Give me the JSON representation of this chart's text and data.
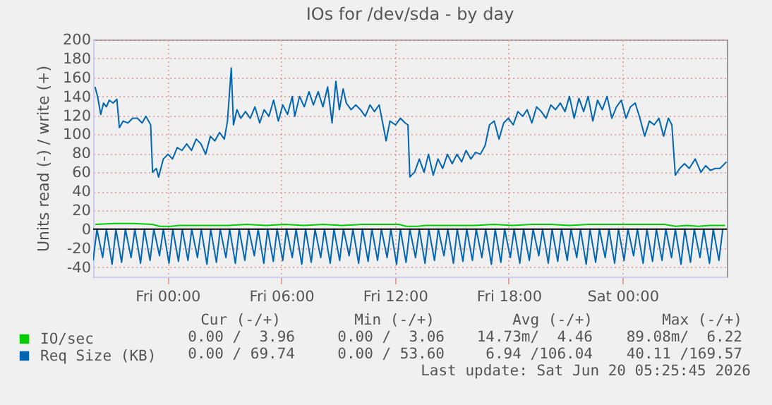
{
  "chart_data": {
    "type": "line",
    "title": "IOs for /dev/sda - by day",
    "ylabel": "Units read (-) / write (+)",
    "xlim": [
      "2026-06-18T20:05",
      "2026-06-20T05:30"
    ],
    "xticks": [
      {
        "value": "2026-06-19T00:00",
        "label": "Fri 00:00"
      },
      {
        "value": "2026-06-19T06:00",
        "label": "Fri 06:00"
      },
      {
        "value": "2026-06-19T12:00",
        "label": "Fri 12:00"
      },
      {
        "value": "2026-06-19T18:00",
        "label": "Fri 18:00"
      },
      {
        "value": "2026-06-20T00:00",
        "label": "Sat 00:00"
      }
    ],
    "ylim": [
      -50,
      200
    ],
    "yticks": [
      -40,
      -20,
      0,
      20,
      40,
      60,
      80,
      100,
      120,
      140,
      160,
      180,
      200
    ],
    "grid": true,
    "legend": "bottom left",
    "ref_lines": [
      {
        "axis": "y",
        "value": 0,
        "color": "#000000"
      }
    ],
    "annotations": [
      "Cur (-/+)",
      "Min (-/+)",
      "Avg (-/+)",
      "Max (-/+)",
      "0.00 /  3.96",
      "0.00 /  3.06",
      "14.73m/  4.46",
      "89.08m/  6.22",
      "0.00 / 69.74",
      "0.00 / 53.60",
      "6.94 /106.04",
      "40.11 /169.57",
      "Last update: Sat Jun 20 05:25:45 2026"
    ],
    "series": [
      {
        "name": "IO/sec",
        "color": "#00cc00",
        "x": [
          "2026-06-18T20:12",
          "2026-06-18T21:12",
          "2026-06-18T22:12",
          "2026-06-18T23:12",
          "2026-06-18T23:36",
          "2026-06-19T00:12",
          "2026-06-19T00:36",
          "2026-06-19T01:12",
          "2026-06-19T02:12",
          "2026-06-19T03:12",
          "2026-06-19T04:12",
          "2026-06-19T05:12",
          "2026-06-19T06:12",
          "2026-06-19T07:12",
          "2026-06-19T08:12",
          "2026-06-19T09:12",
          "2026-06-19T10:12",
          "2026-06-19T11:12",
          "2026-06-19T12:12",
          "2026-06-19T12:36",
          "2026-06-19T13:12",
          "2026-06-19T13:36",
          "2026-06-19T14:12",
          "2026-06-19T15:12",
          "2026-06-19T16:12",
          "2026-06-19T17:12",
          "2026-06-19T18:12",
          "2026-06-19T19:12",
          "2026-06-19T20:12",
          "2026-06-19T21:12",
          "2026-06-19T22:12",
          "2026-06-19T23:12",
          "2026-06-20T00:12",
          "2026-06-20T01:12",
          "2026-06-20T02:12",
          "2026-06-20T02:48",
          "2026-06-20T03:24",
          "2026-06-20T04:00",
          "2026-06-20T04:36",
          "2026-06-20T05:24"
        ],
        "values": [
          5,
          6,
          6,
          5,
          3,
          3,
          4,
          4,
          4,
          4,
          5,
          4,
          5,
          4,
          5,
          4,
          5,
          5,
          5,
          3,
          3,
          4,
          4,
          4,
          4,
          5,
          4,
          5,
          5,
          4,
          5,
          5,
          5,
          5,
          5,
          3,
          4,
          3,
          4,
          4
        ]
      },
      {
        "name": "Req Size (KB)",
        "color": "#0066b3",
        "x": [
          "2026-06-18T20:11",
          "2026-06-18T20:19",
          "2026-06-18T20:29",
          "2026-06-18T20:38",
          "2026-06-18T20:47",
          "2026-06-18T20:56",
          "2026-06-18T21:08",
          "2026-06-18T21:20",
          "2026-06-18T21:28",
          "2026-06-18T21:40",
          "2026-06-18T21:55",
          "2026-06-18T22:10",
          "2026-06-18T22:25",
          "2026-06-18T22:40",
          "2026-06-18T22:52",
          "2026-06-18T23:07",
          "2026-06-18T23:13",
          "2026-06-18T23:25",
          "2026-06-18T23:32",
          "2026-06-18T23:47",
          "2026-06-19T00:02",
          "2026-06-19T00:16",
          "2026-06-19T00:31",
          "2026-06-19T00:46",
          "2026-06-19T01:01",
          "2026-06-19T01:16",
          "2026-06-19T01:31",
          "2026-06-19T01:46",
          "2026-06-19T02:01",
          "2026-06-19T02:16",
          "2026-06-19T02:30",
          "2026-06-19T02:45",
          "2026-06-19T03:00",
          "2026-06-19T03:10",
          "2026-06-19T03:22",
          "2026-06-19T03:29",
          "2026-06-19T03:40",
          "2026-06-19T03:52",
          "2026-06-19T04:07",
          "2026-06-19T04:22",
          "2026-06-19T04:37",
          "2026-06-19T04:52",
          "2026-06-19T05:06",
          "2026-06-19T05:21",
          "2026-06-19T05:36",
          "2026-06-19T05:51",
          "2026-06-19T06:05",
          "2026-06-19T06:20",
          "2026-06-19T06:35",
          "2026-06-19T06:43",
          "2026-06-19T06:58",
          "2026-06-19T07:13",
          "2026-06-19T07:28",
          "2026-06-19T07:42",
          "2026-06-19T07:57",
          "2026-06-19T08:12",
          "2026-06-19T08:27",
          "2026-06-19T08:41",
          "2026-06-19T08:53",
          "2026-06-19T09:04",
          "2026-06-19T09:16",
          "2026-06-19T09:26",
          "2026-06-19T09:41",
          "2026-06-19T09:56",
          "2026-06-19T10:11",
          "2026-06-19T10:26",
          "2026-06-19T10:41",
          "2026-06-19T10:55",
          "2026-06-19T11:10",
          "2026-06-19T11:21",
          "2026-06-19T11:32",
          "2026-06-19T11:44",
          "2026-06-19T12:02",
          "2026-06-19T12:17",
          "2026-06-19T12:32",
          "2026-06-19T12:41",
          "2026-06-19T12:47",
          "2026-06-19T13:02",
          "2026-06-19T13:17",
          "2026-06-19T13:32",
          "2026-06-19T13:46",
          "2026-06-19T14:01",
          "2026-06-19T14:16",
          "2026-06-19T14:31",
          "2026-06-19T14:46",
          "2026-06-19T15:01",
          "2026-06-19T15:16",
          "2026-06-19T15:31",
          "2026-06-19T15:45",
          "2026-06-19T16:00",
          "2026-06-19T16:15",
          "2026-06-19T16:30",
          "2026-06-19T16:45",
          "2026-06-19T16:59",
          "2026-06-19T17:14",
          "2026-06-19T17:29",
          "2026-06-19T17:44",
          "2026-06-19T17:59",
          "2026-06-19T18:14",
          "2026-06-19T18:29",
          "2026-06-19T18:44",
          "2026-06-19T18:58",
          "2026-06-19T19:13",
          "2026-06-19T19:28",
          "2026-06-19T19:43",
          "2026-06-19T19:58",
          "2026-06-19T20:13",
          "2026-06-19T20:28",
          "2026-06-19T20:43",
          "2026-06-19T20:58",
          "2026-06-19T21:12",
          "2026-06-19T21:27",
          "2026-06-19T21:42",
          "2026-06-19T21:57",
          "2026-06-19T22:11",
          "2026-06-19T22:26",
          "2026-06-19T22:41",
          "2026-06-19T22:56",
          "2026-06-19T23:11",
          "2026-06-19T23:26",
          "2026-06-19T23:41",
          "2026-06-19T23:56",
          "2026-06-20T00:11",
          "2026-06-20T00:25",
          "2026-06-20T00:40",
          "2026-06-20T00:55",
          "2026-06-20T01:10",
          "2026-06-20T01:25",
          "2026-06-20T01:40",
          "2026-06-20T01:55",
          "2026-06-20T02:10",
          "2026-06-20T02:25",
          "2026-06-20T02:36",
          "2026-06-20T02:47",
          "2026-06-20T03:01",
          "2026-06-20T03:16",
          "2026-06-20T03:31",
          "2026-06-20T03:50",
          "2026-06-20T04:08",
          "2026-06-20T04:23",
          "2026-06-20T04:38",
          "2026-06-20T04:53",
          "2026-06-20T05:08",
          "2026-06-20T05:29"
        ],
        "values": [
          150,
          140,
          121,
          133,
          129,
          136,
          133,
          137,
          107,
          114,
          112,
          117,
          117,
          112,
          119,
          110,
          60,
          64,
          55,
          74,
          79,
          74,
          86,
          83,
          90,
          83,
          95,
          90,
          79,
          98,
          93,
          102,
          95,
          114,
          170,
          110,
          126,
          117,
          124,
          117,
          129,
          112,
          126,
          119,
          136,
          114,
          131,
          121,
          140,
          119,
          140,
          129,
          145,
          131,
          145,
          129,
          150,
          112,
          156,
          126,
          148,
          133,
          126,
          131,
          126,
          119,
          131,
          124,
          131,
          112,
          93,
          114,
          110,
          117,
          112,
          110,
          55,
          60,
          74,
          60,
          79,
          57,
          74,
          64,
          79,
          69,
          79,
          71,
          83,
          74,
          81,
          79,
          88,
          110,
          114,
          95,
          112,
          117,
          110,
          124,
          119,
          126,
          112,
          129,
          124,
          117,
          131,
          126,
          133,
          124,
          140,
          117,
          138,
          124,
          140,
          114,
          136,
          126,
          140,
          117,
          129,
          136,
          117,
          129,
          133,
          117,
          98,
          114,
          110,
          117,
          98,
          117,
          110,
          57,
          64,
          69,
          64,
          74,
          60,
          67,
          62,
          64,
          64,
          71
        ]
      },
      {
        "color": "#0066b3",
        "x": [
          "2026-06-18T20:05",
          "2026-06-18T20:17",
          "2026-06-18T20:35",
          "2026-06-18T20:47",
          "2026-06-18T21:05",
          "2026-06-18T21:17",
          "2026-06-18T21:35",
          "2026-06-18T21:47",
          "2026-06-18T22:05",
          "2026-06-18T22:17",
          "2026-06-18T22:35",
          "2026-06-18T22:47",
          "2026-06-18T23:05",
          "2026-06-18T23:17",
          "2026-06-18T23:35",
          "2026-06-18T23:47",
          "2026-06-19T00:05",
          "2026-06-19T00:17",
          "2026-06-19T00:35",
          "2026-06-19T00:47",
          "2026-06-19T01:05",
          "2026-06-19T01:17",
          "2026-06-19T01:35",
          "2026-06-19T01:47",
          "2026-06-19T02:05",
          "2026-06-19T02:17",
          "2026-06-19T02:35",
          "2026-06-19T02:47",
          "2026-06-19T03:05",
          "2026-06-19T03:17",
          "2026-06-19T03:35",
          "2026-06-19T03:47",
          "2026-06-19T04:05",
          "2026-06-19T04:17",
          "2026-06-19T04:35",
          "2026-06-19T04:47",
          "2026-06-19T05:05",
          "2026-06-19T05:17",
          "2026-06-19T05:35",
          "2026-06-19T05:47",
          "2026-06-19T06:05",
          "2026-06-19T06:17",
          "2026-06-19T06:35",
          "2026-06-19T06:47",
          "2026-06-19T07:05",
          "2026-06-19T07:17",
          "2026-06-19T07:35",
          "2026-06-19T07:47",
          "2026-06-19T08:05",
          "2026-06-19T08:17",
          "2026-06-19T08:35",
          "2026-06-19T08:47",
          "2026-06-19T09:05",
          "2026-06-19T09:17",
          "2026-06-19T09:35",
          "2026-06-19T09:47",
          "2026-06-19T10:05",
          "2026-06-19T10:17",
          "2026-06-19T10:35",
          "2026-06-19T10:47",
          "2026-06-19T11:05",
          "2026-06-19T11:17",
          "2026-06-19T11:35",
          "2026-06-19T11:47",
          "2026-06-19T12:05",
          "2026-06-19T12:17",
          "2026-06-19T12:35",
          "2026-06-19T12:47",
          "2026-06-19T13:05",
          "2026-06-19T13:17",
          "2026-06-19T13:35",
          "2026-06-19T13:47",
          "2026-06-19T14:05",
          "2026-06-19T14:17",
          "2026-06-19T14:35",
          "2026-06-19T14:47",
          "2026-06-19T15:05",
          "2026-06-19T15:17",
          "2026-06-19T15:35",
          "2026-06-19T15:47",
          "2026-06-19T16:05",
          "2026-06-19T16:17",
          "2026-06-19T16:35",
          "2026-06-19T16:47",
          "2026-06-19T17:05",
          "2026-06-19T17:17",
          "2026-06-19T17:35",
          "2026-06-19T17:47",
          "2026-06-19T18:05",
          "2026-06-19T18:17",
          "2026-06-19T18:35",
          "2026-06-19T18:47",
          "2026-06-19T19:05",
          "2026-06-19T19:17",
          "2026-06-19T19:35",
          "2026-06-19T19:47",
          "2026-06-19T20:05",
          "2026-06-19T20:17",
          "2026-06-19T20:35",
          "2026-06-19T20:47",
          "2026-06-19T21:05",
          "2026-06-19T21:17",
          "2026-06-19T21:35",
          "2026-06-19T21:47",
          "2026-06-19T22:05",
          "2026-06-19T22:17",
          "2026-06-19T22:35",
          "2026-06-19T22:47",
          "2026-06-19T23:05",
          "2026-06-19T23:17",
          "2026-06-19T23:35",
          "2026-06-19T23:47",
          "2026-06-20T00:05",
          "2026-06-20T00:17",
          "2026-06-20T00:35",
          "2026-06-20T00:47",
          "2026-06-20T01:05",
          "2026-06-20T01:17",
          "2026-06-20T01:35",
          "2026-06-20T01:47",
          "2026-06-20T02:05",
          "2026-06-20T02:17",
          "2026-06-20T02:35",
          "2026-06-20T02:47",
          "2026-06-20T03:05",
          "2026-06-20T03:17",
          "2026-06-20T03:35",
          "2026-06-20T03:47",
          "2026-06-20T04:05",
          "2026-06-20T04:17",
          "2026-06-20T04:35",
          "2026-06-20T04:47",
          "2026-06-20T05:05",
          "2026-06-20T05:17"
        ],
        "values": [
          -33,
          0,
          -30,
          0,
          -37,
          0,
          -35,
          0,
          -30,
          0,
          -36,
          0,
          -33,
          0,
          -28,
          0,
          -36,
          0,
          -34,
          0,
          -33,
          0,
          -30,
          0,
          -37,
          0,
          -35,
          0,
          -30,
          0,
          -36,
          0,
          -33,
          0,
          -28,
          0,
          -36,
          0,
          -34,
          0,
          -33,
          0,
          -30,
          0,
          -37,
          0,
          -35,
          0,
          -30,
          0,
          -36,
          0,
          -33,
          0,
          -28,
          0,
          -36,
          0,
          -34,
          0,
          -33,
          0,
          -30,
          0,
          -37,
          0,
          -35,
          0,
          -30,
          0,
          -36,
          0,
          -33,
          0,
          -28,
          0,
          -36,
          0,
          -34,
          0,
          -33,
          0,
          -30,
          0,
          -37,
          0,
          -35,
          0,
          -30,
          0,
          -36,
          0,
          -33,
          0,
          -28,
          0,
          -36,
          0,
          -34,
          0,
          -33,
          0,
          -30,
          0,
          -37,
          0,
          -35,
          0,
          -30,
          0,
          -36,
          0,
          -33,
          0,
          -28,
          0,
          -36,
          0,
          -34,
          0,
          -33,
          0,
          -30,
          0,
          -37,
          0,
          -35,
          0,
          -30,
          0,
          -36,
          0,
          -33,
          0
        ]
      }
    ]
  }
}
